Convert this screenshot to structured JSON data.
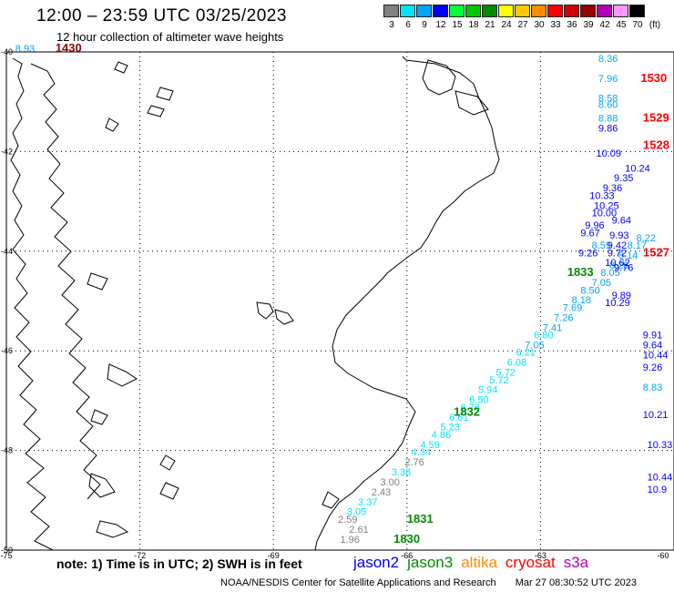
{
  "header": {
    "title": "12:00 – 23:59 UTC 03/25/2023",
    "subtitle": "12 hour collection of altimeter wave heights"
  },
  "legend": {
    "unit": "(ft)",
    "bins": [
      {
        "label": "3",
        "color": "#808080"
      },
      {
        "label": "6",
        "color": "#00e5ff"
      },
      {
        "label": "9",
        "color": "#00a5ff"
      },
      {
        "label": "12",
        "color": "#0000ff"
      },
      {
        "label": "15",
        "color": "#00ff3c"
      },
      {
        "label": "18",
        "color": "#00c800"
      },
      {
        "label": "21",
        "color": "#008c00"
      },
      {
        "label": "24",
        "color": "#ffff00"
      },
      {
        "label": "27",
        "color": "#ffc800"
      },
      {
        "label": "30",
        "color": "#ff8c00"
      },
      {
        "label": "33",
        "color": "#ff0000"
      },
      {
        "label": "36",
        "color": "#d20000"
      },
      {
        "label": "39",
        "color": "#960000"
      },
      {
        "label": "42",
        "color": "#b400b4"
      },
      {
        "label": "45",
        "color": "#ff96ff"
      },
      {
        "label": "70",
        "color": "#000000"
      }
    ]
  },
  "axes": {
    "lon_ticks": [
      "-75",
      "-72",
      "-69",
      "-66",
      "-63",
      "-60"
    ],
    "lat_ticks": [
      "-40",
      "-42",
      "-44",
      "-46",
      "-48",
      "-50"
    ]
  },
  "tracks": [
    {
      "name": "main-track",
      "time_labels": [
        {
          "text": "1830",
          "lon": -66.3,
          "lat": -49.85,
          "color": "#008c00"
        },
        {
          "text": "1831",
          "lon": -66.0,
          "lat": -49.45,
          "color": "#008c00"
        },
        {
          "text": "1832",
          "lon": -64.95,
          "lat": -47.3,
          "color": "#008c00"
        },
        {
          "text": "1833",
          "lon": -62.4,
          "lat": -44.5,
          "color": "#008c00"
        }
      ],
      "points": [
        {
          "v": "1.96",
          "lon": -67.5,
          "lat": -49.85,
          "c": "#808080"
        },
        {
          "v": "2.61",
          "lon": -67.3,
          "lat": -49.65,
          "c": "#808080"
        },
        {
          "v": "2.59",
          "lon": -67.55,
          "lat": -49.45,
          "c": "#808080"
        },
        {
          "v": "3.05",
          "lon": -67.35,
          "lat": -49.3,
          "c": "#00e5ff"
        },
        {
          "v": "3.37",
          "lon": -67.1,
          "lat": -49.1,
          "c": "#00e5ff"
        },
        {
          "v": "2.43",
          "lon": -66.8,
          "lat": -48.9,
          "c": "#808080"
        },
        {
          "v": "3.00",
          "lon": -66.6,
          "lat": -48.7,
          "c": "#808080"
        },
        {
          "v": "3.38",
          "lon": -66.35,
          "lat": -48.5,
          "c": "#00e5ff"
        },
        {
          "v": "2.76",
          "lon": -66.05,
          "lat": -48.3,
          "c": "#808080"
        },
        {
          "v": "4.34",
          "lon": -65.9,
          "lat": -48.1,
          "c": "#00e5ff"
        },
        {
          "v": "4.59",
          "lon": -65.7,
          "lat": -47.95,
          "c": "#00e5ff"
        },
        {
          "v": "4.86",
          "lon": -65.45,
          "lat": -47.75,
          "c": "#00e5ff"
        },
        {
          "v": "5.23",
          "lon": -65.25,
          "lat": -47.6,
          "c": "#00e5ff"
        },
        {
          "v": "6.61",
          "lon": -65.05,
          "lat": -47.4,
          "c": "#00e5ff"
        },
        {
          "v": "6.76",
          "lon": -64.8,
          "lat": -47.2,
          "c": "#00e5ff"
        },
        {
          "v": "6.50",
          "lon": -64.6,
          "lat": -47.05,
          "c": "#00e5ff"
        },
        {
          "v": "5.94",
          "lon": -64.4,
          "lat": -46.85,
          "c": "#00e5ff"
        },
        {
          "v": "5.72",
          "lon": -64.15,
          "lat": -46.65,
          "c": "#00e5ff"
        },
        {
          "v": "5.72",
          "lon": -64.0,
          "lat": -46.5,
          "c": "#00e5ff"
        },
        {
          "v": "6.08",
          "lon": -63.75,
          "lat": -46.3,
          "c": "#00e5ff"
        },
        {
          "v": "6.21",
          "lon": -63.55,
          "lat": -46.1,
          "c": "#00e5ff"
        },
        {
          "v": "7.05",
          "lon": -63.35,
          "lat": -45.95,
          "c": "#00a5ff"
        },
        {
          "v": "6.80",
          "lon": -63.15,
          "lat": -45.75,
          "c": "#00e5ff"
        },
        {
          "v": "7.41",
          "lon": -62.95,
          "lat": -45.6,
          "c": "#00a5ff"
        },
        {
          "v": "7.26",
          "lon": -62.7,
          "lat": -45.4,
          "c": "#00a5ff"
        },
        {
          "v": "7.69",
          "lon": -62.5,
          "lat": -45.2,
          "c": "#00a5ff"
        },
        {
          "v": "8.18",
          "lon": -62.3,
          "lat": -45.05,
          "c": "#00a5ff"
        },
        {
          "v": "8.50",
          "lon": -62.1,
          "lat": -44.85,
          "c": "#00a5ff"
        },
        {
          "v": "7.05",
          "lon": -61.85,
          "lat": -44.7,
          "c": "#00a5ff"
        },
        {
          "v": "8.05",
          "lon": -61.65,
          "lat": -44.5,
          "c": "#00a5ff"
        },
        {
          "v": "8.28",
          "lon": -61.45,
          "lat": -44.35,
          "c": "#00a5ff"
        },
        {
          "v": "8.14",
          "lon": -61.25,
          "lat": -44.15,
          "c": "#00a5ff"
        },
        {
          "v": "8.17",
          "lon": -61.05,
          "lat": -43.95,
          "c": "#00a5ff"
        },
        {
          "v": "8.22",
          "lon": -60.85,
          "lat": -43.8,
          "c": "#00a5ff"
        }
      ]
    },
    {
      "name": "edge-track",
      "time_labels": [
        {
          "text": "1530",
          "lon": -60.75,
          "lat": -40.6,
          "color": "#ff0000"
        },
        {
          "text": "1529",
          "lon": -60.7,
          "lat": -41.4,
          "color": "#ff0000"
        },
        {
          "text": "1528",
          "lon": -60.6,
          "lat": -41.95,
          "color": "#ff0000"
        },
        {
          "text": "1527",
          "lon": -60.5,
          "lat": -44.1,
          "color": "#ff0000"
        },
        {
          "text": "1430",
          "lon": -73.9,
          "lat": -40.0,
          "color": "#960000"
        }
      ],
      "points": [
        {
          "v": "8.93",
          "lon": -74.8,
          "lat": -40.0,
          "c": "#00a5ff"
        },
        {
          "v": "8.36",
          "lon": -61.7,
          "lat": -40.2,
          "c": "#00a5ff"
        },
        {
          "v": "7.96",
          "lon": -61.7,
          "lat": -40.6,
          "c": "#00a5ff"
        },
        {
          "v": "8.58",
          "lon": -61.7,
          "lat": -41.0,
          "c": "#00a5ff"
        },
        {
          "v": "8.60",
          "lon": -61.7,
          "lat": -41.12,
          "c": "#00a5ff"
        },
        {
          "v": "8.88",
          "lon": -61.7,
          "lat": -41.4,
          "c": "#00a5ff"
        },
        {
          "v": "9.86",
          "lon": -61.7,
          "lat": -41.6,
          "c": "#0000ff"
        },
        {
          "v": "10.09",
          "lon": -61.75,
          "lat": -42.1,
          "c": "#0000ff"
        },
        {
          "v": "10.24",
          "lon": -61.1,
          "lat": -42.4,
          "c": "#0000ff"
        },
        {
          "v": "9.35",
          "lon": -61.35,
          "lat": -42.6,
          "c": "#0000ff"
        },
        {
          "v": "9.36",
          "lon": -61.6,
          "lat": -42.8,
          "c": "#0000ff"
        },
        {
          "v": "10.33",
          "lon": -61.9,
          "lat": -42.95,
          "c": "#0000ff"
        },
        {
          "v": "10.25",
          "lon": -61.8,
          "lat": -43.15,
          "c": "#0000ff"
        },
        {
          "v": "10.00",
          "lon": -61.85,
          "lat": -43.3,
          "c": "#0000ff"
        },
        {
          "v": "9.64",
          "lon": -61.4,
          "lat": -43.45,
          "c": "#0000ff"
        },
        {
          "v": "9.96",
          "lon": -62.0,
          "lat": -43.55,
          "c": "#0000ff"
        },
        {
          "v": "9.67",
          "lon": -62.1,
          "lat": -43.7,
          "c": "#0000ff"
        },
        {
          "v": "9.93",
          "lon": -61.45,
          "lat": -43.75,
          "c": "#0000ff"
        },
        {
          "v": "8.59",
          "lon": -61.85,
          "lat": -43.95,
          "c": "#00a5ff"
        },
        {
          "v": "9.42",
          "lon": -61.5,
          "lat": -43.95,
          "c": "#0000ff"
        },
        {
          "v": "9.26",
          "lon": -62.15,
          "lat": -44.1,
          "c": "#0000ff"
        },
        {
          "v": "9.72",
          "lon": -61.5,
          "lat": -44.1,
          "c": "#0000ff"
        },
        {
          "v": "10.62",
          "lon": -61.55,
          "lat": -44.3,
          "c": "#0000ff"
        },
        {
          "v": "9.76",
          "lon": -61.35,
          "lat": -44.4,
          "c": "#0000ff"
        },
        {
          "v": "9.89",
          "lon": -61.4,
          "lat": -44.95,
          "c": "#0000ff"
        },
        {
          "v": "10.29",
          "lon": -61.55,
          "lat": -45.1,
          "c": "#0000ff"
        },
        {
          "v": "9.91",
          "lon": -60.7,
          "lat": -45.75,
          "c": "#0000ff"
        },
        {
          "v": "9.64",
          "lon": -60.7,
          "lat": -45.95,
          "c": "#0000ff"
        },
        {
          "v": "10.44",
          "lon": -60.7,
          "lat": -46.15,
          "c": "#0000ff"
        },
        {
          "v": "9.26",
          "lon": -60.7,
          "lat": -46.4,
          "c": "#0000ff"
        },
        {
          "v": "8.83",
          "lon": -60.7,
          "lat": -46.8,
          "c": "#00a5ff"
        },
        {
          "v": "10.21",
          "lon": -60.7,
          "lat": -47.35,
          "c": "#0000ff"
        },
        {
          "v": "10.33",
          "lon": -60.6,
          "lat": -47.95,
          "c": "#0000ff"
        },
        {
          "v": "10.44",
          "lon": -60.6,
          "lat": -48.6,
          "c": "#0000ff"
        },
        {
          "v": "10.9",
          "lon": -60.6,
          "lat": -48.85,
          "c": "#0000ff"
        }
      ]
    }
  ],
  "note": "note:  1) Time is in UTC;  2) SWH is in feet",
  "satellites": [
    {
      "name": "jason2",
      "color": "#0000e0"
    },
    {
      "name": "jason3",
      "color": "#008c00"
    },
    {
      "name": "altika",
      "color": "#ff8c00"
    },
    {
      "name": "cryosat",
      "color": "#ff0000"
    },
    {
      "name": "s3a",
      "color": "#b400b4"
    }
  ],
  "footer": {
    "org": "NOAA/NESDIS Center for Satellite Applications and Research",
    "timestamp": "Mar 27 08:30:52 UTC 2023"
  }
}
